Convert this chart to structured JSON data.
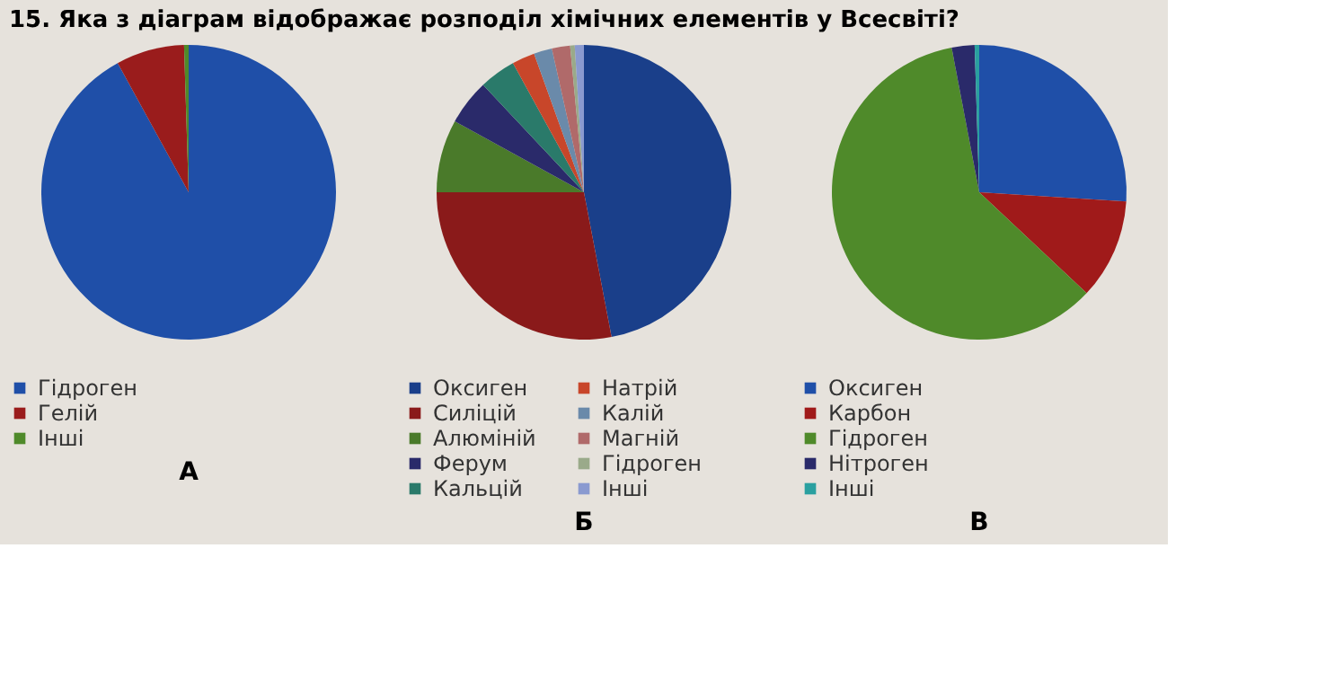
{
  "chart_data": [
    {
      "type": "pie",
      "title": "А",
      "annotations": [
        "15. Яка з діаграм відображає розподіл хімічних елементів у Всесвіті?"
      ],
      "categories": [
        "Гідроген",
        "Гелій",
        "Інші"
      ],
      "values": [
        92,
        7.5,
        0.5
      ],
      "colors": [
        "#1f4fa8",
        "#9a1c1c",
        "#4f8a2a"
      ],
      "legend": "bottom"
    },
    {
      "type": "pie",
      "title": "Б",
      "categories": [
        "Оксиген",
        "Силіцій",
        "Алюміній",
        "Ферум",
        "Кальцій",
        "Натрій",
        "Калій",
        "Магній",
        "Гідроген",
        "Інші"
      ],
      "values": [
        47,
        28,
        8,
        5,
        4,
        2.5,
        2,
        2,
        0.5,
        1
      ],
      "colors": [
        "#1a3f8a",
        "#8a1a1a",
        "#4a7a2a",
        "#2a2a6a",
        "#2a7a6a",
        "#c8462a",
        "#6a8aaa",
        "#b06a6a",
        "#9aaa8a",
        "#8a9ad0"
      ],
      "legend": "bottom"
    },
    {
      "type": "pie",
      "title": "В",
      "categories": [
        "Оксиген",
        "Карбон",
        "Гідроген",
        "Нітроген",
        "Інші"
      ],
      "values": [
        26,
        11,
        60,
        2.5,
        0.5
      ],
      "colors": [
        "#1f4fa8",
        "#a01a1a",
        "#4f8a2a",
        "#2a2a6a",
        "#2aa0a0"
      ],
      "legend": "bottom"
    }
  ]
}
